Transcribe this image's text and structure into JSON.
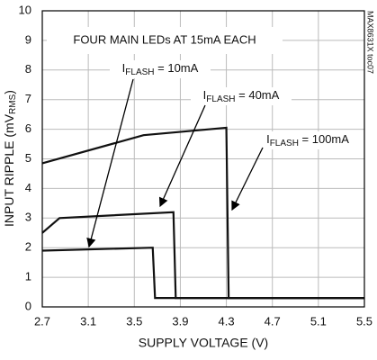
{
  "chart_data": {
    "type": "line",
    "title": "FOUR MAIN LEDs AT 15mA EACH",
    "side_note": "MAX8631X toc07",
    "xlabel": "SUPPLY VOLTAGE (V)",
    "ylabel": {
      "main": "INPUT RIPPLE (mV",
      "sub": "RMS",
      "end": ")"
    },
    "xlim": [
      2.7,
      5.5
    ],
    "xticks": [
      2.7,
      3.1,
      3.5,
      3.9,
      4.3,
      4.7,
      5.1,
      5.5
    ],
    "ylim": [
      0,
      10
    ],
    "yticks": [
      0,
      1,
      2,
      3,
      4,
      5,
      6,
      7,
      8,
      9,
      10
    ],
    "grid": true,
    "series": [
      {
        "color": "#111111",
        "x": [
          2.7,
          3.66,
          3.68,
          5.5
        ],
        "values": [
          1.9,
          2.0,
          0.3,
          0.3
        ]
      },
      {
        "color": "#111111",
        "x": [
          2.7,
          2.85,
          3.84,
          3.86,
          5.5
        ],
        "values": [
          2.5,
          3.0,
          3.2,
          0.3,
          0.3
        ]
      },
      {
        "color": "#111111",
        "x": [
          2.7,
          3.58,
          4.3,
          4.32,
          5.5
        ],
        "values": [
          4.85,
          5.8,
          6.05,
          0.3,
          0.3
        ]
      }
    ],
    "annotations": [
      {
        "main": "I",
        "sub": "FLASH",
        "end": " = 10mA"
      },
      {
        "main": "I",
        "sub": "FLASH",
        "end": " = 40mA"
      },
      {
        "main": "I",
        "sub": "FLASH",
        "end": " = 100mA"
      }
    ]
  }
}
